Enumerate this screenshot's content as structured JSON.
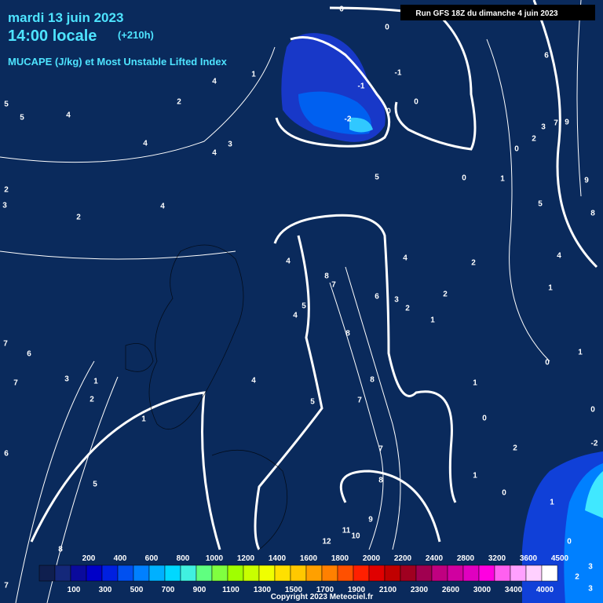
{
  "header": {
    "date": "mardi 13 juin 2023",
    "time": "14:00 locale",
    "offset": "(+210h)",
    "product": "MUCAPE (J/kg) et Most Unstable Lifted Index"
  },
  "run": "Run GFS 18Z du dimanche 4 juin 2023",
  "legend": {
    "top_labels": [
      "200",
      "400",
      "600",
      "800",
      "1000",
      "1200",
      "1400",
      "1600",
      "1800",
      "2000",
      "2200",
      "2400",
      "2800",
      "3200",
      "3600",
      "4500"
    ],
    "bottom_labels": [
      "100",
      "300",
      "500",
      "700",
      "900",
      "1100",
      "1300",
      "1500",
      "1700",
      "1900",
      "2100",
      "2300",
      "2600",
      "3000",
      "3400",
      "4000"
    ],
    "colors": [
      "#0f1f4f",
      "#14287a",
      "#0a0a9c",
      "#0000c8",
      "#0020e0",
      "#0050f0",
      "#0080ff",
      "#00b0ff",
      "#00d8ff",
      "#40f0e0",
      "#60ff80",
      "#80ff40",
      "#a0ff00",
      "#c8ff00",
      "#f0ff00",
      "#ffe000",
      "#ffc800",
      "#ffa000",
      "#ff8000",
      "#ff5000",
      "#ff2000",
      "#e00000",
      "#c00000",
      "#a00020",
      "#a00050",
      "#c00080",
      "#d000a0",
      "#e000c0",
      "#ff00e0",
      "#ff60f0",
      "#ffa0ff",
      "#ffd0ff",
      "#ffffff"
    ]
  },
  "copyright": "Copyright 2023 Meteociel.fr",
  "contour_labels": [
    "0",
    "0",
    "-1",
    "-1",
    "0",
    "0",
    "-2",
    "1",
    "4",
    "2",
    "4",
    "5",
    "5",
    "4",
    "3",
    "4",
    "2",
    "3",
    "2",
    "4",
    "5",
    "0",
    "1",
    "0",
    "2",
    "3",
    "7",
    "9",
    "6",
    "9",
    "5",
    "8",
    "4",
    "2",
    "4",
    "4",
    "8",
    "7",
    "5",
    "4",
    "6",
    "3",
    "2",
    "2",
    "1",
    "1",
    "8",
    "8",
    "7",
    "5",
    "4",
    "1",
    "0",
    "0",
    "1",
    "0",
    "-2",
    "2",
    "1",
    "0",
    "1",
    "0",
    "3",
    "7",
    "6",
    "7",
    "3",
    "1",
    "2",
    "1",
    "6",
    "5",
    "7",
    "8",
    "9",
    "11",
    "10",
    "12",
    "8",
    "7",
    "2",
    "3"
  ]
}
